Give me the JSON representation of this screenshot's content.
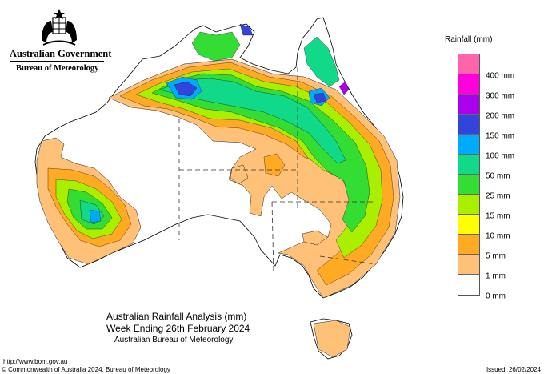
{
  "header": {
    "government": "Australian Government",
    "agency": "Bureau of Meteorology"
  },
  "legend": {
    "title": "Rainfall (mm)",
    "levels": [
      {
        "label": "",
        "color": "#ff66aa"
      },
      {
        "label": "400 mm",
        "color": "#ff00dd"
      },
      {
        "label": "300 mm",
        "color": "#aa00ee"
      },
      {
        "label": "200 mm",
        "color": "#3344dd"
      },
      {
        "label": "150 mm",
        "color": "#00aaff"
      },
      {
        "label": "100 mm",
        "color": "#11d98a"
      },
      {
        "label": "50 mm",
        "color": "#33dd33"
      },
      {
        "label": "25 mm",
        "color": "#aaee00"
      },
      {
        "label": "15 mm",
        "color": "#ffff00"
      },
      {
        "label": "10 mm",
        "color": "#ffaa22"
      },
      {
        "label": "5 mm",
        "color": "#ffc077"
      },
      {
        "label": "1 mm",
        "color": "#ffffff"
      },
      {
        "label": "0 mm",
        "color": ""
      }
    ]
  },
  "caption": {
    "title": "Australian Rainfall Analysis (mm)",
    "week": "Week Ending 26th February 2024",
    "org": "Australian Bureau of Meteorology"
  },
  "footer": {
    "url": "http://www.bom.gov.au",
    "copyright": "© Commonwealth of Australia 2024, Bureau of Meteorology",
    "issued": "Issued: 26/02/2024"
  }
}
